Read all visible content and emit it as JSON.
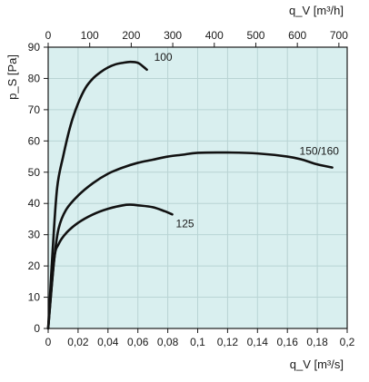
{
  "colors": {
    "plot_background": "#d9efef",
    "grid": "#b9d4d4",
    "axis": "#1a1a1a",
    "curve": "#111111"
  },
  "chart_data": {
    "type": "line",
    "title": "",
    "xlabel": "q_V [m³/s]",
    "x2label": "q_V [m³/h]",
    "ylabel": "p_S [Pa]",
    "xlim": [
      0,
      0.2
    ],
    "x2lim": [
      0,
      720
    ],
    "ylim": [
      0,
      90
    ],
    "x_ticks": [
      0,
      0.02,
      0.04,
      0.06,
      0.08,
      0.1,
      0.12,
      0.14,
      0.16,
      0.18,
      0.2
    ],
    "x_tick_labels": [
      "0",
      "0,02",
      "0,04",
      "0,06",
      "0,08",
      "0,1",
      "0,12",
      "0,14",
      "0,16",
      "0,18",
      "0,2"
    ],
    "x2_ticks": [
      0,
      100,
      200,
      300,
      400,
      500,
      600,
      700
    ],
    "x2_tick_labels": [
      "0",
      "100",
      "200",
      "300",
      "400",
      "500",
      "600",
      "700"
    ],
    "y_ticks": [
      0,
      10,
      20,
      30,
      40,
      50,
      60,
      70,
      80,
      90
    ],
    "y_tick_labels": [
      "0",
      "10",
      "20",
      "30",
      "40",
      "50",
      "60",
      "70",
      "80",
      "90"
    ],
    "grid": true,
    "series": [
      {
        "name": "100",
        "points": [
          [
            0,
            0
          ],
          [
            0.003,
            25
          ],
          [
            0.006,
            45
          ],
          [
            0.01,
            55
          ],
          [
            0.015,
            65
          ],
          [
            0.02,
            72
          ],
          [
            0.025,
            77
          ],
          [
            0.03,
            80
          ],
          [
            0.035,
            82
          ],
          [
            0.04,
            83.5
          ],
          [
            0.045,
            84.5
          ],
          [
            0.05,
            85
          ],
          [
            0.055,
            85.3
          ],
          [
            0.06,
            85
          ],
          [
            0.063,
            84
          ],
          [
            0.066,
            82.8
          ]
        ]
      },
      {
        "name": "150/160",
        "points": [
          [
            0,
            0
          ],
          [
            0.004,
            22
          ],
          [
            0.007,
            32
          ],
          [
            0.012,
            38
          ],
          [
            0.02,
            42.5
          ],
          [
            0.03,
            46.5
          ],
          [
            0.04,
            49.5
          ],
          [
            0.05,
            51.5
          ],
          [
            0.06,
            53
          ],
          [
            0.07,
            54
          ],
          [
            0.08,
            55
          ],
          [
            0.09,
            55.6
          ],
          [
            0.1,
            56.2
          ],
          [
            0.12,
            56.3
          ],
          [
            0.14,
            56
          ],
          [
            0.16,
            55
          ],
          [
            0.17,
            54
          ],
          [
            0.18,
            52.5
          ],
          [
            0.19,
            51.5
          ]
        ]
      },
      {
        "name": "125",
        "points": [
          [
            0,
            0
          ],
          [
            0.004,
            22
          ],
          [
            0.007,
            27
          ],
          [
            0.012,
            30.5
          ],
          [
            0.02,
            33.8
          ],
          [
            0.03,
            36.5
          ],
          [
            0.04,
            38.3
          ],
          [
            0.05,
            39.4
          ],
          [
            0.055,
            39.6
          ],
          [
            0.06,
            39.4
          ],
          [
            0.07,
            38.8
          ],
          [
            0.078,
            37.5
          ],
          [
            0.083,
            36.5
          ]
        ]
      }
    ]
  }
}
